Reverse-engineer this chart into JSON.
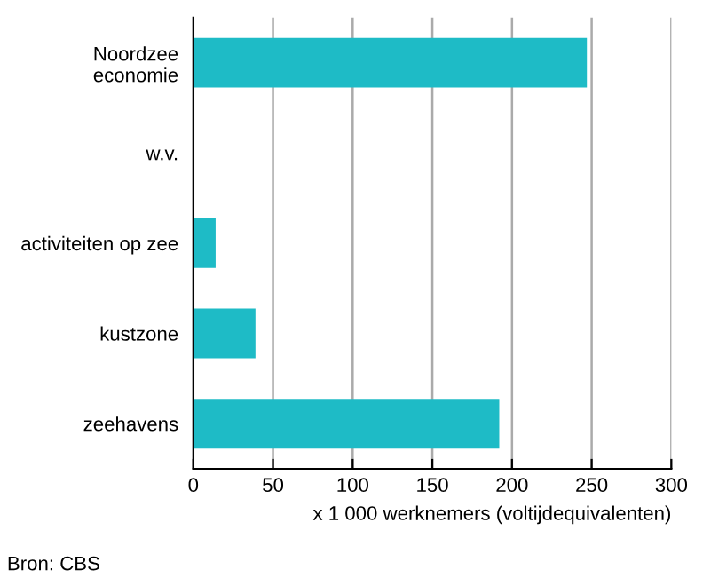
{
  "chart_data": {
    "type": "bar",
    "orientation": "horizontal",
    "categories": [
      "Noordzee\neconomie",
      "w.v.",
      "activiteiten op zee",
      "kustzone",
      "zeehavens"
    ],
    "values": [
      247,
      null,
      14,
      39,
      192
    ],
    "color": "#1ebbc6",
    "xlabel": "x 1 000 werknemers (voltijdequivalenten)",
    "xlim": [
      0,
      300
    ],
    "xticks": [
      0,
      50,
      100,
      150,
      200,
      250,
      300
    ],
    "grid": "x",
    "annotations": [
      "Bron: CBS"
    ]
  }
}
